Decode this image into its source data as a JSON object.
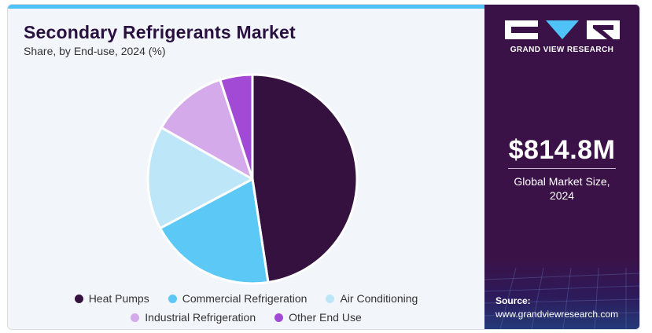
{
  "header": {
    "title": "Secondary Refrigerants Market",
    "subtitle": "Share, by End-use, 2024 (%)"
  },
  "chart_data": {
    "type": "pie",
    "categories": [
      "Heat Pumps",
      "Commercial Refrigeration",
      "Air Conditioning",
      "Industrial Refrigeration",
      "Other End Use"
    ],
    "values": [
      47.6,
      19.6,
      16.0,
      11.8,
      5.0
    ],
    "colors": [
      "#35113f",
      "#5bc8f5",
      "#bde6f8",
      "#d4aaea",
      "#a24ad6"
    ],
    "legend_position": "bottom"
  },
  "sidebar": {
    "brand": "GRAND VIEW RESEARCH",
    "market_size_value": "$814.8M",
    "market_size_label": "Global Market Size, 2024",
    "source_label": "Source:",
    "source_url": "www.grandviewresearch.com"
  }
}
